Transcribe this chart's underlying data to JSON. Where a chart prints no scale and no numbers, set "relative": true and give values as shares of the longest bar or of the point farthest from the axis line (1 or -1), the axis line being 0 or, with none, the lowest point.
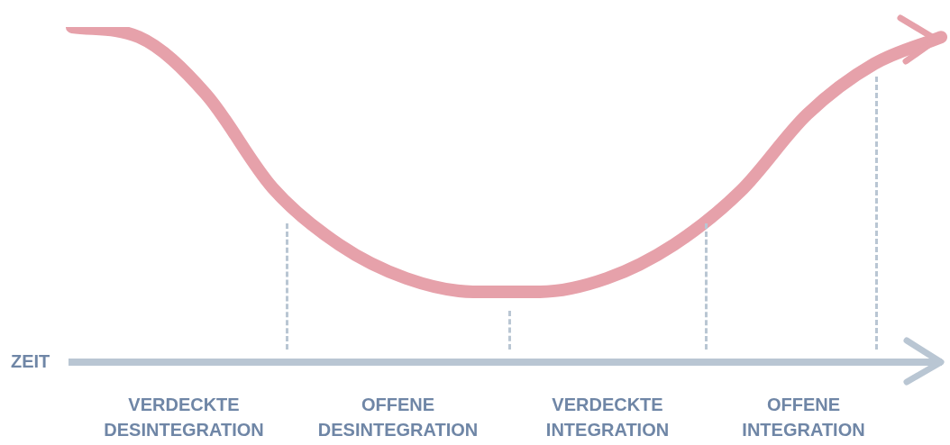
{
  "chart_data": {
    "type": "line",
    "relative": true,
    "xlabel": "ZEIT",
    "marker": "none",
    "legend": false,
    "grid": false,
    "tick_labels": false,
    "categories": [
      null,
      null,
      null,
      null,
      null,
      null,
      null,
      null,
      null,
      null,
      null,
      null,
      null,
      null
    ],
    "series": [
      {
        "color": "#e6a1aa",
        "values": [
          1,
          0.97,
          0.8,
          0.52,
          0.35,
          0.25,
          0.21,
          0.21,
          0.25,
          0.35,
          0.51,
          0.74,
          0.89,
          0.97
        ]
      }
    ],
    "annotations": [
      "VERDECKTE DESINTEGRATION",
      "OFFENE DESINTEGRATION",
      "VERDECKTE INTEGRATION",
      "OFFENE INTEGRATION"
    ]
  }
}
